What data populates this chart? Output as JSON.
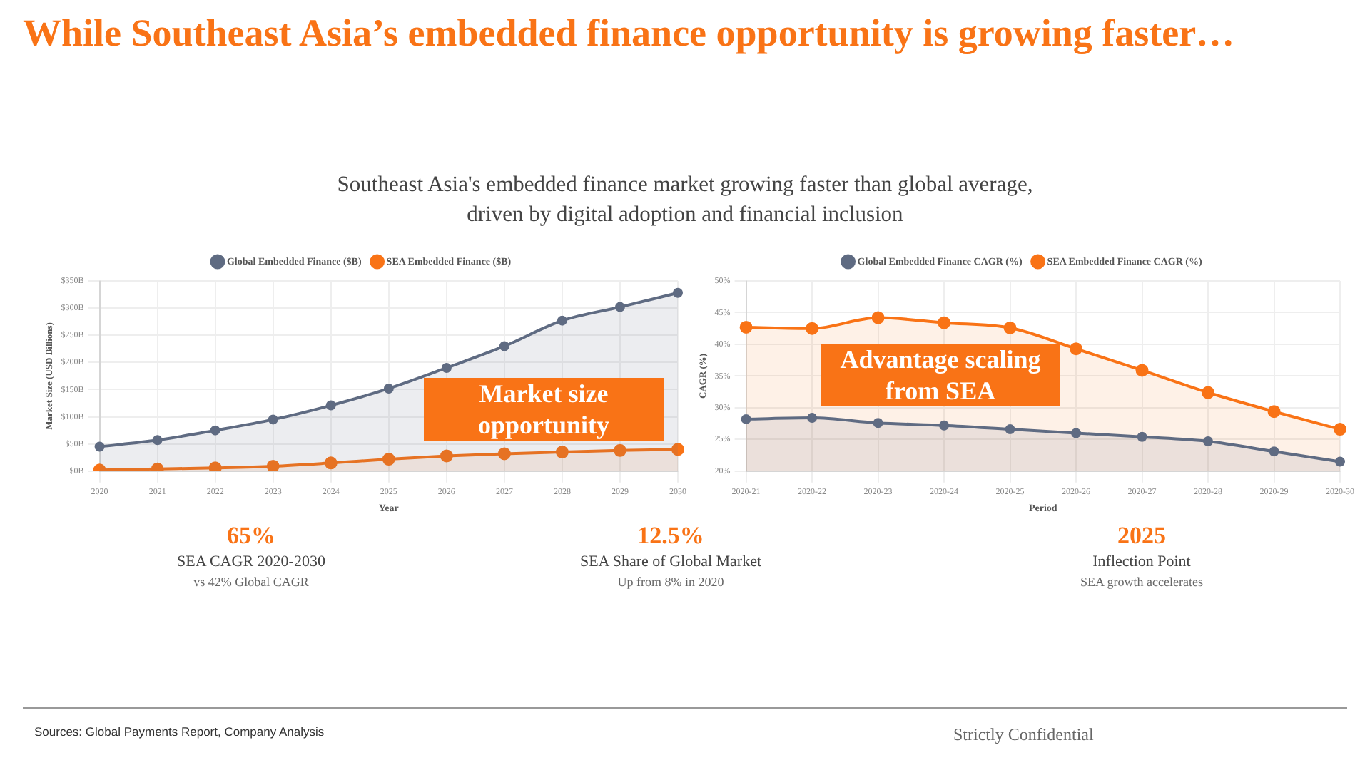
{
  "chart_data": [
    {
      "type": "area",
      "categories": [
        "2020",
        "2021",
        "2022",
        "2023",
        "2024",
        "2025",
        "2026",
        "2027",
        "2028",
        "2029",
        "2030"
      ],
      "series": [
        {
          "name": "Global Embedded Finance ($B)",
          "color": "#5f6b82",
          "values": [
            45,
            57,
            75,
            95,
            121,
            152,
            190,
            230,
            277,
            302,
            328
          ]
        },
        {
          "name": "SEA Embedded Finance ($B)",
          "color": "#f97316",
          "values": [
            2,
            4,
            6,
            9,
            15,
            22,
            28,
            32,
            35,
            38,
            40
          ]
        }
      ],
      "xlabel": "Year",
      "ylabel": "Market Size (USD Billions)",
      "ylim": [
        0,
        350
      ],
      "yticks": [
        {
          "value": 0,
          "label": "$0B"
        },
        {
          "value": 50,
          "label": "$50B"
        },
        {
          "value": 100,
          "label": "$100B"
        },
        {
          "value": 150,
          "label": "$150B"
        },
        {
          "value": 200,
          "label": "$200B"
        },
        {
          "value": 250,
          "label": "$250B"
        },
        {
          "value": 300,
          "label": "$300B"
        },
        {
          "value": 350,
          "label": "$350B"
        }
      ],
      "grid": true,
      "legend": "top",
      "marker": "circle",
      "annotations": [
        "Market size opportunity"
      ]
    },
    {
      "type": "area",
      "categories": [
        "2020-21",
        "2020-22",
        "2020-23",
        "2020-24",
        "2020-25",
        "2020-26",
        "2020-27",
        "2020-28",
        "2020-29",
        "2020-30"
      ],
      "series": [
        {
          "name": "Global Embedded Finance CAGR (%)",
          "color": "#5f6b82",
          "values": [
            28.2,
            28.4,
            27.6,
            27.2,
            26.6,
            26.0,
            25.4,
            24.7,
            23.1,
            21.5
          ]
        },
        {
          "name": "SEA Embedded Finance CAGR (%)",
          "color": "#f97316",
          "values": [
            42.7,
            42.5,
            44.2,
            43.4,
            42.6,
            39.3,
            35.9,
            32.4,
            29.4,
            26.6
          ]
        }
      ],
      "xlabel": "Period",
      "ylabel": "CAGR (%)",
      "ylim": [
        20,
        50
      ],
      "yticks": [
        {
          "value": 20,
          "label": "20%"
        },
        {
          "value": 25,
          "label": "25%"
        },
        {
          "value": 30,
          "label": "30%"
        },
        {
          "value": 35,
          "label": "35%"
        },
        {
          "value": 40,
          "label": "40%"
        },
        {
          "value": 45,
          "label": "45%"
        },
        {
          "value": 50,
          "label": "50%"
        }
      ],
      "grid": true,
      "legend": "top",
      "marker": "circle",
      "annotations": [
        "Advantage scaling from SEA"
      ]
    },
    {
      "type": "other",
      "title": "While Southeast Asia’s embedded finance opportunity is growing faster…",
      "subtitle": "Southeast Asia's embedded finance market growing faster than global average, driven by digital adoption and financial inclusion",
      "annotations": [
        "65%",
        "SEA CAGR 2020-2030",
        "vs 42% Global CAGR",
        "12.5%",
        "SEA Share of Global Market",
        "Up from 8% in 2020",
        "2025",
        "Inflection Point",
        "SEA growth accelerates",
        "Sources: Global Payments Report, Company Analysis",
        "Strictly Confidential"
      ]
    }
  ]
}
